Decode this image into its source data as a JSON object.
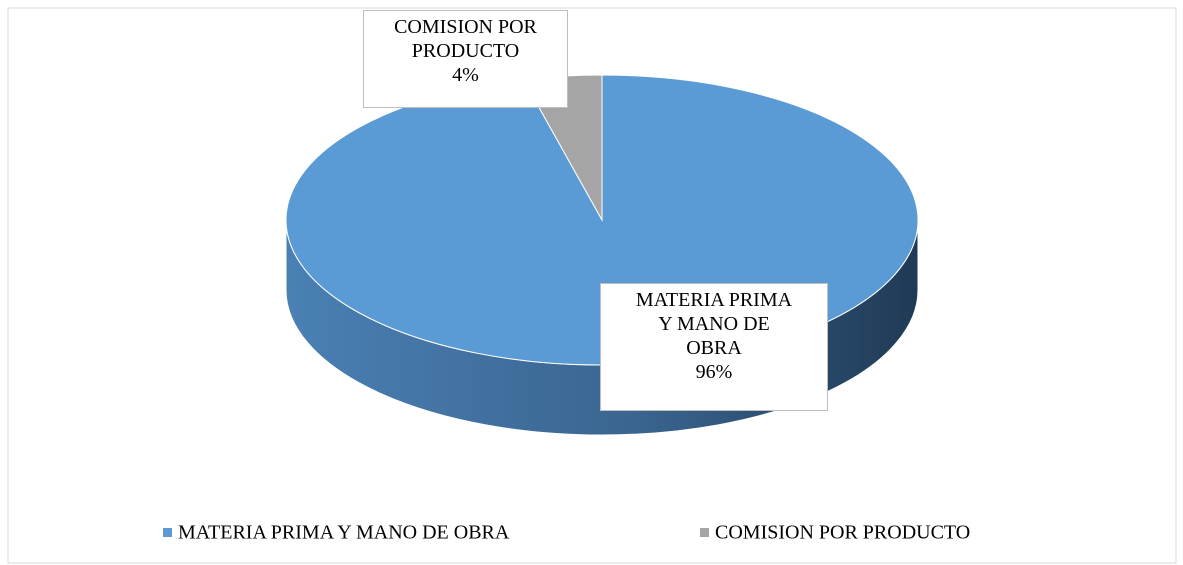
{
  "chart_data": {
    "type": "pie",
    "categories": [
      "MATERIA PRIMA Y MANO DE OBRA",
      "COMISION POR PRODUCTO"
    ],
    "values": [
      96,
      4
    ],
    "value_labels": [
      "96%",
      "4%"
    ],
    "colors": [
      "#5b9bd5",
      "#a5a5a5"
    ],
    "legend": "bottom"
  }
}
